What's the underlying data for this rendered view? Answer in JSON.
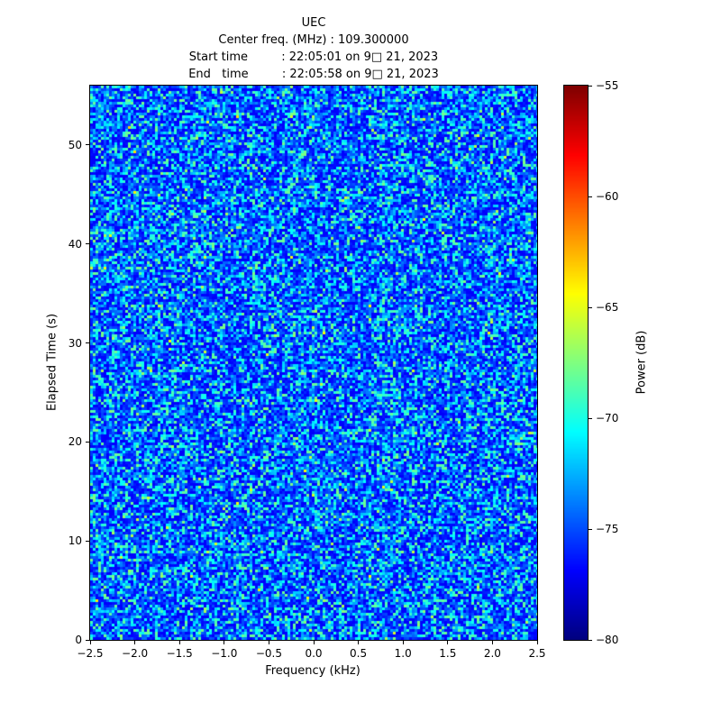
{
  "chart_data": {
    "type": "heatmap",
    "title": "UEC",
    "subtitle_lines": [
      "Center freq. (MHz) : 109.300000",
      "Start time         : 22:05:01 on 9□ 21, 2023",
      "End   time         : 22:05:58 on 9□ 21, 2023"
    ],
    "center_freq_mhz": "109.300000",
    "start_time": "22:05:01 on 9□ 21, 2023",
    "end_time": "22:05:58 on 9□ 21, 2023",
    "xlabel": "Frequency (kHz)",
    "ylabel": "Elapsed Time (s)",
    "xlim": [
      -2.5,
      2.5
    ],
    "ylim": [
      0,
      56
    ],
    "x_tick_values": [
      -2.5,
      -2.0,
      -1.5,
      -1.0,
      -0.5,
      0.0,
      0.5,
      1.0,
      1.5,
      2.0,
      2.5
    ],
    "x_tick_labels": [
      "−2.5",
      "−2.0",
      "−1.5",
      "−1.0",
      "−0.5",
      "0.0",
      "0.5",
      "1.0",
      "1.5",
      "2.0",
      "2.5"
    ],
    "y_tick_values": [
      0,
      10,
      20,
      30,
      40,
      50
    ],
    "y_tick_labels": [
      "0",
      "10",
      "20",
      "30",
      "40",
      "50"
    ],
    "colorbar": {
      "label": "Power (dB)",
      "min": -80,
      "max": -55,
      "tick_values": [
        -55,
        -60,
        -65,
        -70,
        -75,
        -80
      ],
      "tick_labels": [
        "−55",
        "−60",
        "−65",
        "−70",
        "−75",
        "−80"
      ],
      "colormap": "jet"
    },
    "content_description": "broadband noise floor around -75 dB, random speckle, no visible signal",
    "noise_floor_db": -75,
    "background_color": "#ffffff"
  }
}
